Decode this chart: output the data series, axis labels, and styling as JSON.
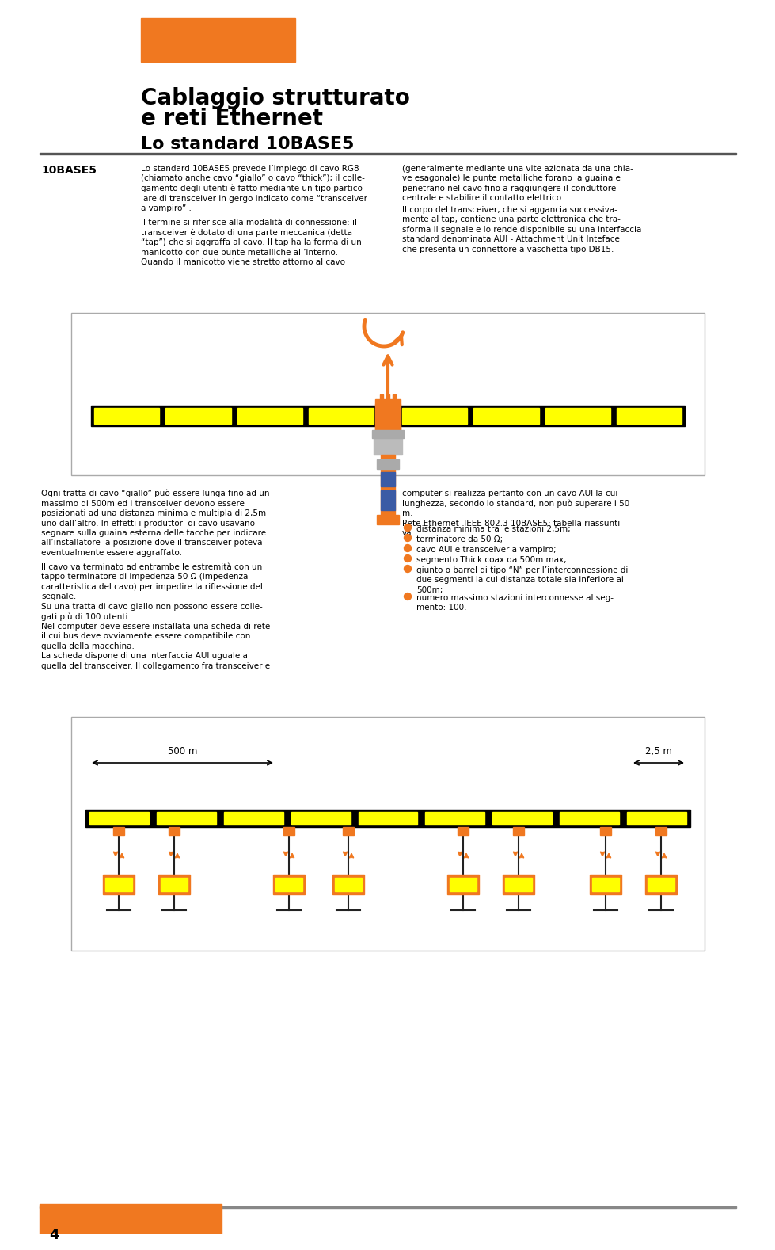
{
  "title1": "Cablaggio strutturato",
  "title2": "e reti Ethernet",
  "title3": "Lo standard 10BASE5",
  "orange_color": "#F07820",
  "blue_color": "#3B5BA5",
  "gray_color": "#AAAAAA",
  "yellow_color": "#FFFF00",
  "black_color": "#000000",
  "dark_color": "#222222",
  "bg_color": "#FFFFFF",
  "page_number": "4",
  "label_10base5": "10BASE5",
  "text_col1_para1": "Lo standard 10BASE5 prevede l’impiego di cavo RG8\n(chiamato anche cavo “giallo” o cavo “thick”); il colle-\ngamento degli utenti è fatto mediante un tipo partico-\nlare di transceiver in gergo indicato come “transceiver\na vampiro” .",
  "text_col1_para2": "Il termine si riferisce alla modalità di connessione: il\ntransceiver è dotato di una parte meccanica (detta\n“tap”) che si aggraffa al cavo. Il tap ha la forma di un\nmanicotto con due punte metalliche all’interno.\nQuando il manicotto viene stretto attorno al cavo",
  "text_col2_para1": "(generalmente mediante una vite azionata da una chia-\nve esagonale) le punte metalliche forano la guaina e\npenetrano nel cavo fino a raggiungere il conduttore\ncentrale e stabilire il contatto elettrico.",
  "text_col2_para2": "Il corpo del transceiver, che si aggancia successiva-\nmente al tap, contiene una parte elettronica che tra-\nsforma il segnale e lo rende disponibile su una interfaccia\nstandard denominata AUI - Attachment Unit Inteface\nche presenta un connettore a vaschetta tipo DB15.",
  "text_col3_para1": "Ogni tratta di cavo “giallo” può essere lunga fino ad un\nmassimo di 500m ed i transceiver devono essere\nposizionati ad una distanza minima e multipla di 2,5m\nuno dall’altro. In effetti i produttori di cavo usavano\nsegnare sulla guaina esterna delle tacche per indicare\nall’installatore la posizione dove il transceiver poteva\neventualmente essere aggraffato.",
  "text_col3_para2": "Il cavo va terminato ad entrambe le estremità con un\ntappo terminatore di impedenza 50 Ω (impedenza\ncaratteristica del cavo) per impedire la riflessione del\nsegnale.\nSu una tratta di cavo giallo non possono essere colle-\ngati più di 100 utenti.\nNel computer deve essere installata una scheda di rete\nil cui bus deve ovviamente essere compatibile con\nquella della macchina.\nLa scheda dispone di una interfaccia AUI uguale a\nquella del transceiver. Il collegamento fra transceiver e",
  "text_col4_para1": "computer si realizza pertanto con un cavo AUI la cui\nlunghezza, secondo lo standard, non può superare i 50\nm.\nRete Ethernet  IEEE 802.3 10BASE5: tabella riassunti-\nva.",
  "text_col4_bullets": [
    "distanza minima tra le stazioni 2,5m;",
    "terminatore da 50 Ω;",
    "cavo AUI e transceiver a vampiro;",
    "segmento Thick coax da 500m max;",
    "giunto o barrel di tipo “N” per l’interconnessione di\ndue segmenti la cui distanza totale sia inferiore ai\n500m;",
    "numero massimo stazioni interconnesse al seg-\nmento: 100."
  ],
  "label_500m": "500 m",
  "label_2_5m": "2,5 m"
}
